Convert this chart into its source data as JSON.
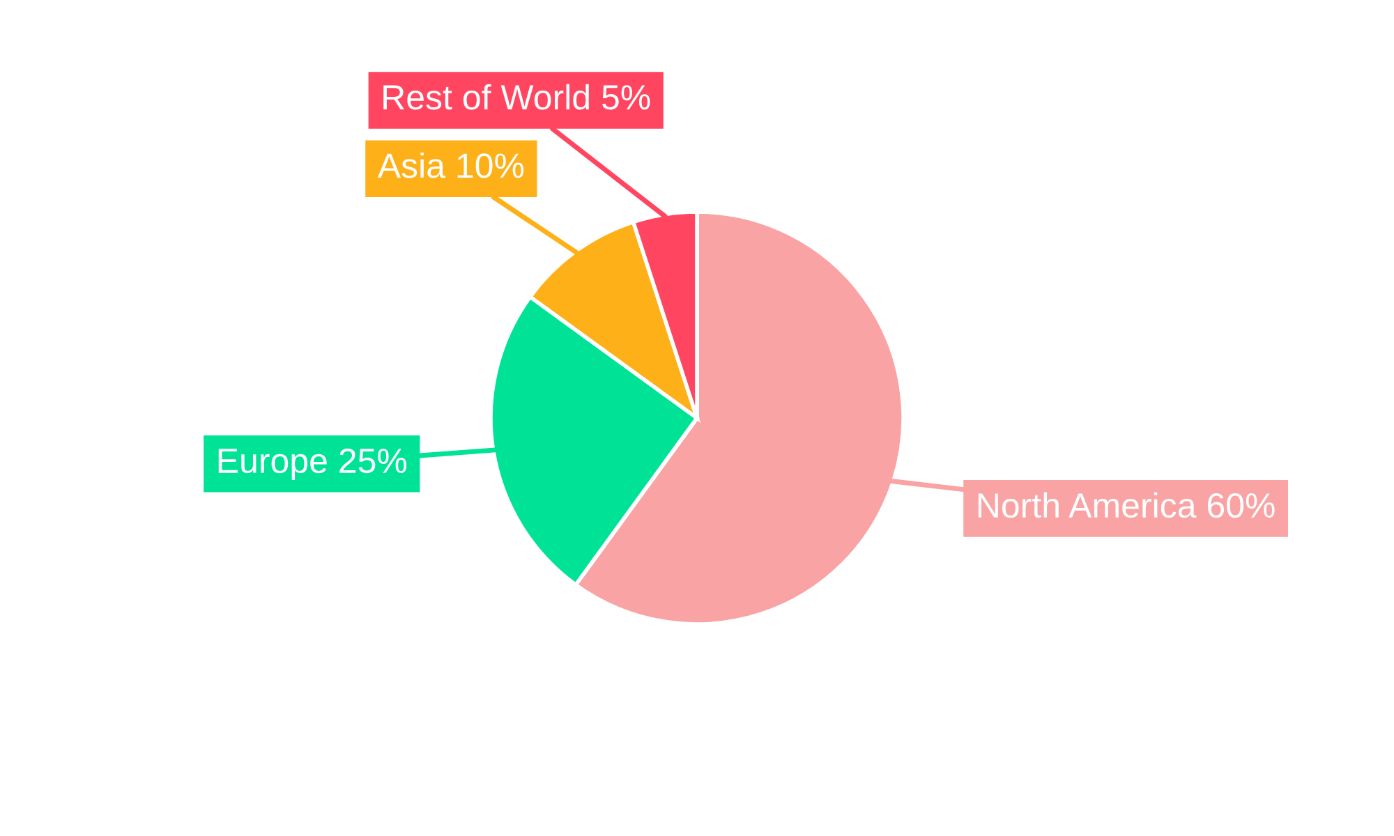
{
  "chart_data": {
    "type": "pie",
    "categories": [
      "North America",
      "Europe",
      "Asia",
      "Rest of World"
    ],
    "values": [
      60,
      25,
      10,
      5
    ],
    "value_labels": [
      "60%",
      "25%",
      "10%",
      "5%"
    ],
    "colors": [
      "#f9a3a4",
      "#00e396",
      "#feb019",
      "#ff4560"
    ],
    "legend": false
  }
}
